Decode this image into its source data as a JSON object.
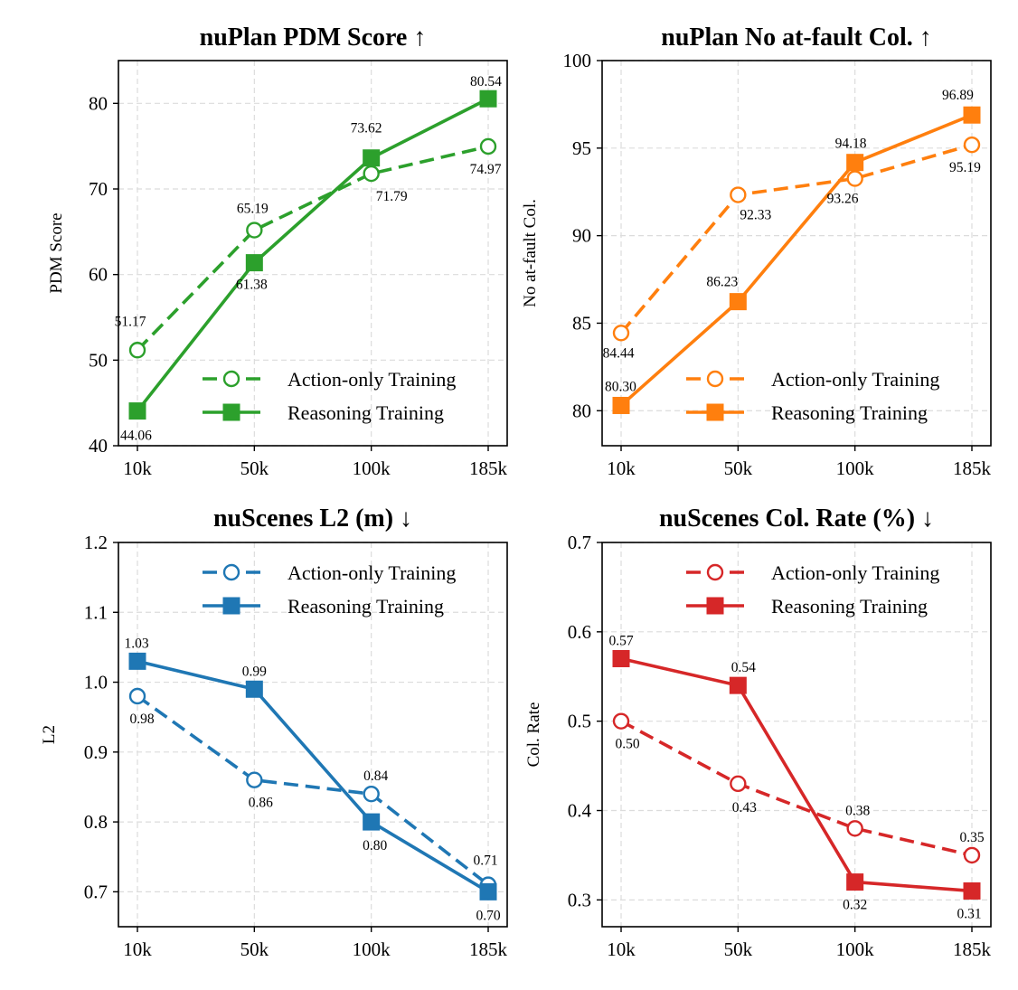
{
  "chart_data": [
    {
      "type": "line",
      "title": "nuPlan PDM Score ↑",
      "xlabel": "",
      "ylabel": "PDM Score",
      "categories": [
        "10k",
        "50k",
        "100k",
        "185k"
      ],
      "ylim": [
        40,
        85
      ],
      "yticks": [
        40,
        50,
        60,
        70,
        80
      ],
      "legend": "lower-right",
      "grid": true,
      "color": "#2ca02c",
      "series": [
        {
          "name": "Action-only Training",
          "style": "dashed-open-circle",
          "values": [
            51.17,
            65.19,
            71.79,
            74.97
          ],
          "labels": [
            "51.17",
            "65.19",
            "71.79",
            "74.97"
          ]
        },
        {
          "name": "Reasoning Training",
          "style": "solid-filled-square",
          "values": [
            44.06,
            61.38,
            73.62,
            80.54
          ],
          "labels": [
            "44.06",
            "61.38",
            "73.62",
            "80.54"
          ]
        }
      ]
    },
    {
      "type": "line",
      "title": "nuPlan No at-fault Col. ↑",
      "xlabel": "",
      "ylabel": "No at-fault Col.",
      "categories": [
        "10k",
        "50k",
        "100k",
        "185k"
      ],
      "ylim": [
        78,
        100
      ],
      "yticks": [
        80,
        85,
        90,
        95,
        100
      ],
      "legend": "lower-right",
      "grid": true,
      "color": "#ff7f0e",
      "series": [
        {
          "name": "Action-only Training",
          "style": "dashed-open-circle",
          "values": [
            84.44,
            92.33,
            93.26,
            95.19
          ],
          "labels": [
            "84.44",
            "92.33",
            "93.26",
            "95.19"
          ]
        },
        {
          "name": "Reasoning Training",
          "style": "solid-filled-square",
          "values": [
            80.3,
            86.23,
            94.18,
            96.89
          ],
          "labels": [
            "80.30",
            "86.23",
            "94.18",
            "96.89"
          ]
        }
      ]
    },
    {
      "type": "line",
      "title": "nuScenes L2 (m) ↓",
      "xlabel": "",
      "ylabel": "L2",
      "categories": [
        "10k",
        "50k",
        "100k",
        "185k"
      ],
      "ylim": [
        0.65,
        1.2
      ],
      "yticks": [
        0.7,
        0.8,
        0.9,
        1.0,
        1.1,
        1.2
      ],
      "ytick_labels": [
        "0.7",
        "0.8",
        "0.9",
        "1.0",
        "1.1",
        "1.2"
      ],
      "legend": "upper-right",
      "grid": true,
      "color": "#1f77b4",
      "series": [
        {
          "name": "Action-only Training",
          "style": "dashed-open-circle",
          "values": [
            0.98,
            0.86,
            0.84,
            0.71
          ],
          "labels": [
            "0.98",
            "0.86",
            "0.84",
            "0.71"
          ]
        },
        {
          "name": "Reasoning Training",
          "style": "solid-filled-square",
          "values": [
            1.03,
            0.99,
            0.8,
            0.7
          ],
          "labels": [
            "1.03",
            "0.99",
            "0.80",
            "0.70"
          ]
        }
      ]
    },
    {
      "type": "line",
      "title": "nuScenes Col. Rate (%) ↓",
      "xlabel": "",
      "ylabel": "Col. Rate",
      "categories": [
        "10k",
        "50k",
        "100k",
        "185k"
      ],
      "ylim": [
        0.27,
        0.7
      ],
      "yticks": [
        0.3,
        0.4,
        0.5,
        0.6,
        0.7
      ],
      "ytick_labels": [
        "0.3",
        "0.4",
        "0.5",
        "0.6",
        "0.7"
      ],
      "legend": "upper-right",
      "grid": true,
      "color": "#d62728",
      "series": [
        {
          "name": "Action-only Training",
          "style": "dashed-open-circle",
          "values": [
            0.5,
            0.43,
            0.38,
            0.35
          ],
          "labels": [
            "0.50",
            "0.43",
            "0.38",
            "0.35"
          ]
        },
        {
          "name": "Reasoning Training",
          "style": "solid-filled-square",
          "values": [
            0.57,
            0.54,
            0.32,
            0.31
          ],
          "labels": [
            "0.57",
            "0.54",
            "0.32",
            "0.31"
          ]
        }
      ]
    }
  ]
}
